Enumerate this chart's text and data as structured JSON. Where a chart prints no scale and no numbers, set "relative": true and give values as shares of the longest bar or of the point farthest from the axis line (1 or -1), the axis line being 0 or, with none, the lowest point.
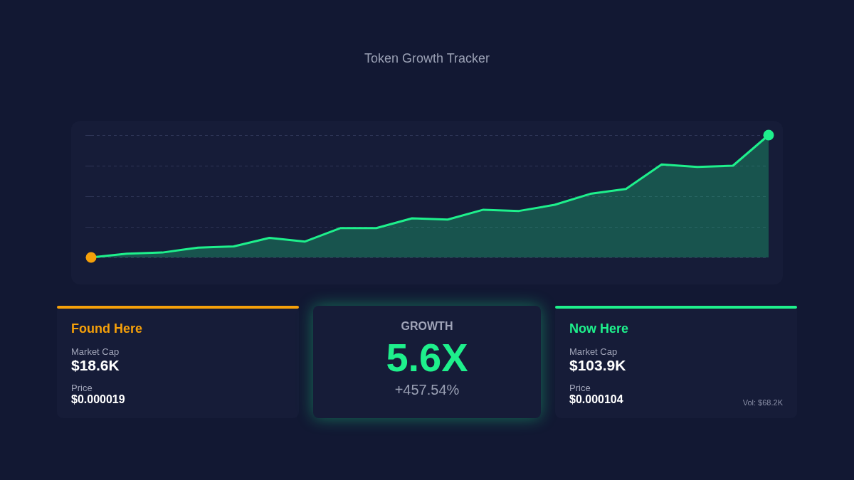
{
  "chart_data": [
    {
      "type": "line",
      "subtitle": "Token Growth Tracker",
      "relative": true,
      "categories": [
        null,
        null,
        null,
        null,
        null,
        null,
        null,
        null,
        null,
        null,
        null,
        null,
        null,
        null,
        null,
        null,
        null,
        null,
        null,
        null
      ],
      "series": [
        {
          "color": "#1ef08c",
          "colors": [
            "#f5a00a",
            "#1ef08c",
            "#1ef08c",
            "#1ef08c",
            "#1ef08c",
            "#1ef08c",
            "#1ef08c",
            "#1ef08c",
            "#1ef08c",
            "#1ef08c",
            "#1ef08c",
            "#1ef08c",
            "#1ef08c",
            "#1ef08c",
            "#1ef08c",
            "#1ef08c",
            "#1ef08c",
            "#1ef08c",
            "#1ef08c",
            "#1ef08c"
          ],
          "values": [
            0,
            0.03,
            0.04,
            0.08,
            0.09,
            0.16,
            0.13,
            0.24,
            0.24,
            0.32,
            0.31,
            0.39,
            0.38,
            0.43,
            0.52,
            0.56,
            0.76,
            0.74,
            0.75,
            1
          ]
        }
      ],
      "grid": "y",
      "legend": false,
      "line_style": "solid"
    },
    {
      "type": "other",
      "annotations": [
        "Found Here",
        "Market Cap",
        "$18.6K",
        "Price",
        "$0.000019",
        "GROWTH",
        "5.6X",
        "+457.54%",
        "Now Here",
        "Market Cap",
        "$103.9K",
        "Price",
        "$0.000104",
        "Vol: $68.2K"
      ]
    }
  ]
}
